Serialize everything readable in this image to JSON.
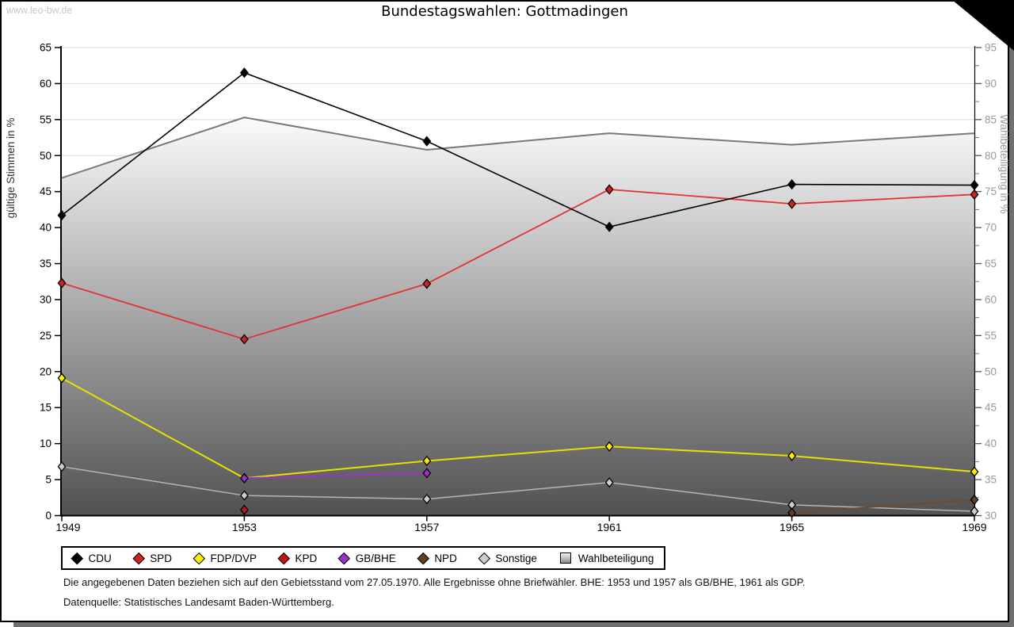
{
  "watermark": "www.leo-bw.de",
  "title": "Bundestagswahlen: Gottmadingen",
  "chart_data": {
    "type": "line",
    "title": "Bundestagswahlen: Gottmadingen",
    "x": [
      1949,
      1953,
      1957,
      1961,
      1965,
      1969
    ],
    "y_left": {
      "label": "gültige Stimmen in %",
      "min": 0,
      "max": 65,
      "tick_step": 5
    },
    "y_right": {
      "label": "Wahlbeteiligung in %",
      "min": 30,
      "max": 95,
      "tick_step": 5
    },
    "grid": true,
    "legend_position": "bottom",
    "series": [
      {
        "name": "CDU",
        "axis": "left",
        "type": "line",
        "legend_marker": "diamond",
        "color": "#000000",
        "marker_color": "#000000",
        "values": [
          41.7,
          61.5,
          52.0,
          40.1,
          46.0,
          45.9
        ]
      },
      {
        "name": "SPD",
        "axis": "left",
        "type": "line",
        "legend_marker": "diamond",
        "color": "#e23232",
        "marker_color": "#cc2222",
        "values": [
          32.3,
          24.5,
          32.2,
          45.3,
          43.3,
          44.6
        ]
      },
      {
        "name": "FDP/DVP",
        "axis": "left",
        "type": "line",
        "legend_marker": "diamond",
        "color": "#e3e300",
        "marker_color": "#ffee00",
        "values": [
          19.1,
          5.2,
          7.6,
          9.6,
          8.3,
          6.1
        ]
      },
      {
        "name": "KPD",
        "axis": "left",
        "type": "line",
        "legend_marker": "diamond",
        "color": "#c01515",
        "marker_color": "#c01515",
        "values": [
          null,
          0.8,
          null,
          null,
          null,
          null
        ]
      },
      {
        "name": "GB/BHE",
        "axis": "left",
        "type": "line",
        "legend_marker": "diamond",
        "color": "#9933cc",
        "marker_color": "#9933cc",
        "values": [
          null,
          5.2,
          5.9,
          null,
          null,
          null
        ]
      },
      {
        "name": "NPD",
        "axis": "left",
        "type": "line",
        "legend_marker": "diamond",
        "color": "#6f4a2a",
        "marker_color": "#5f4023",
        "values": [
          null,
          null,
          null,
          null,
          0.4,
          2.2
        ]
      },
      {
        "name": "Sonstige",
        "axis": "left",
        "type": "line",
        "legend_marker": "diamond",
        "color": "#b5b5b5",
        "marker_color": "#cdcdcd",
        "values": [
          6.8,
          2.8,
          2.3,
          4.6,
          1.5,
          0.6
        ]
      },
      {
        "name": "Wahlbeteiligung",
        "axis": "right",
        "type": "area",
        "legend_marker": "square",
        "color": "#787878",
        "marker_color": "#bbbbbb",
        "values": [
          76.9,
          85.3,
          80.8,
          83.1,
          81.5,
          83.1
        ]
      }
    ]
  },
  "footnotes": {
    "line1": "Die angegebenen Daten beziehen sich auf den Gebietsstand vom 27.05.1970. Alle Ergebnisse ohne Briefwähler. BHE: 1953 und 1957 als GB/BHE, 1961 als GDP.",
    "line2": "Datenquelle: Statistisches Landesamt Baden-Württemberg."
  }
}
